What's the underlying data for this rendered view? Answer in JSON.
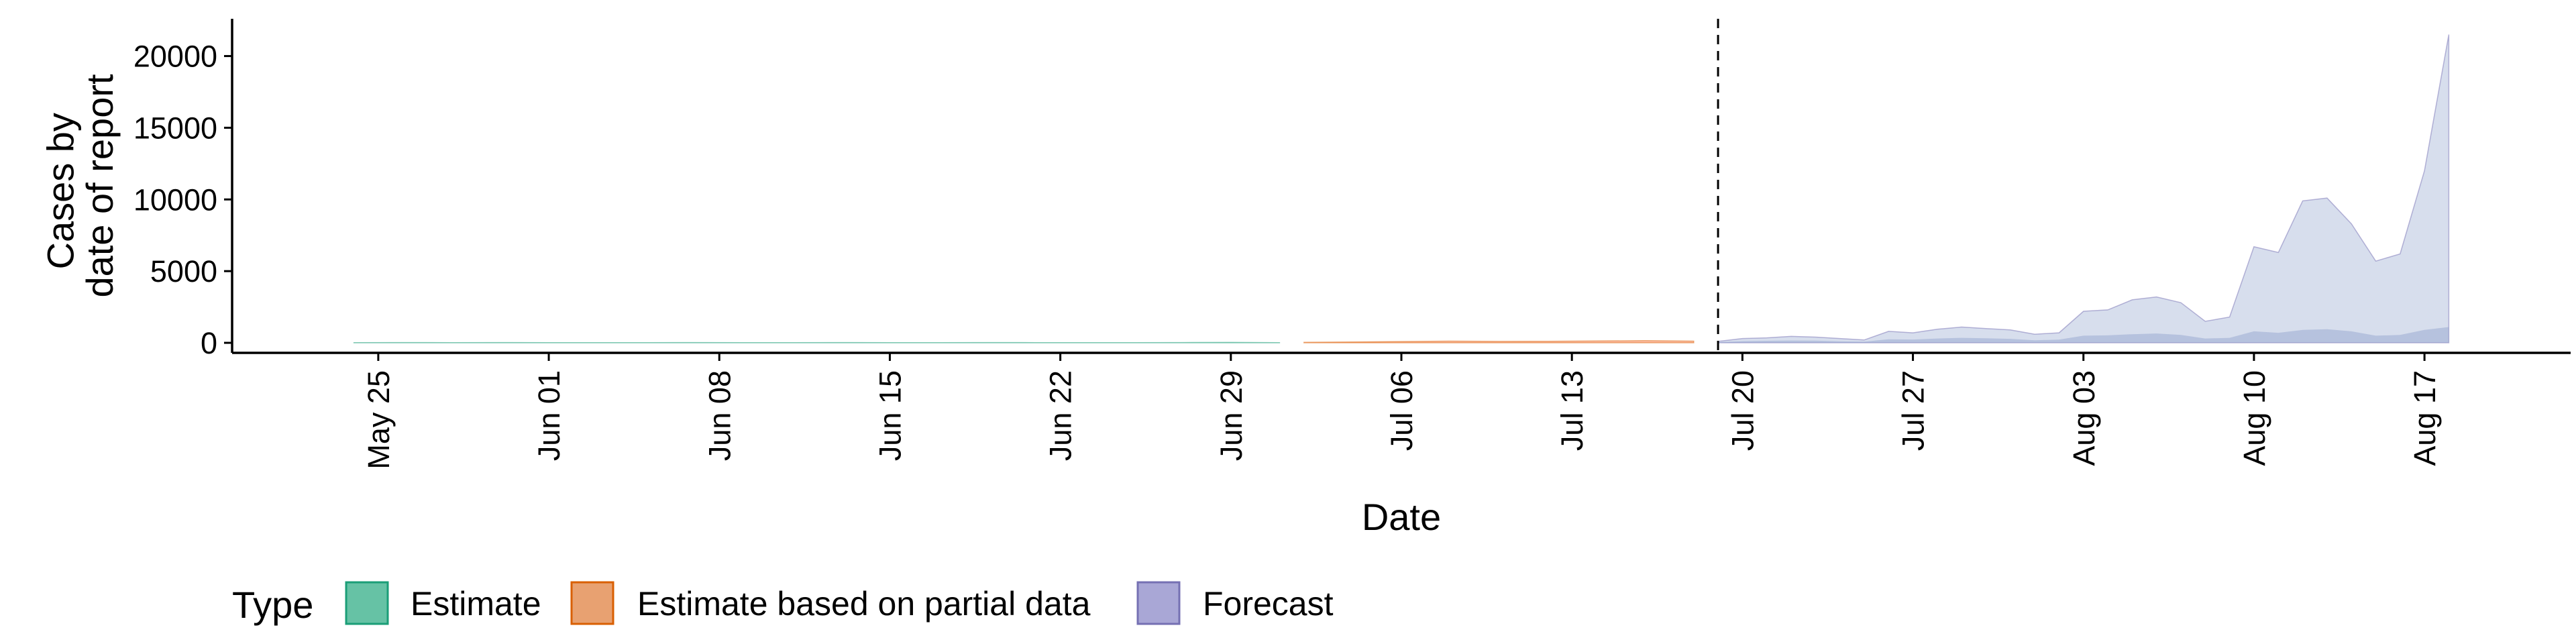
{
  "chart_data": {
    "type": "area",
    "ylabel": "Cases by\ndate of report",
    "xlabel": "Date",
    "yticks": [
      0,
      5000,
      10000,
      15000,
      20000
    ],
    "ylim": [
      -700,
      22600
    ],
    "xlim": [
      "2020-05-19",
      "2020-08-23"
    ],
    "xticks": [
      {
        "date": "2020-05-25",
        "label": "May 25"
      },
      {
        "date": "2020-06-01",
        "label": "Jun 01"
      },
      {
        "date": "2020-06-08",
        "label": "Jun 08"
      },
      {
        "date": "2020-06-15",
        "label": "Jun 15"
      },
      {
        "date": "2020-06-22",
        "label": "Jun 22"
      },
      {
        "date": "2020-06-29",
        "label": "Jun 29"
      },
      {
        "date": "2020-07-06",
        "label": "Jul 06"
      },
      {
        "date": "2020-07-13",
        "label": "Jul 13"
      },
      {
        "date": "2020-07-20",
        "label": "Jul 20"
      },
      {
        "date": "2020-07-27",
        "label": "Jul 27"
      },
      {
        "date": "2020-08-03",
        "label": "Aug 03"
      },
      {
        "date": "2020-08-10",
        "label": "Aug 10"
      },
      {
        "date": "2020-08-17",
        "label": "Aug 17"
      }
    ],
    "vline": "2020-07-19",
    "legend": {
      "title": "Type",
      "position": "bottom",
      "entries": [
        "Estimate",
        "Estimate based on partial data",
        "Forecast"
      ]
    },
    "series": [
      {
        "name": "Estimate",
        "fill": "#66C2A5",
        "stroke": "#1B9E77",
        "dates": [
          "2020-05-24",
          "2020-05-26",
          "2020-05-28",
          "2020-05-30",
          "2020-06-01",
          "2020-06-03",
          "2020-06-05",
          "2020-06-07",
          "2020-06-09",
          "2020-06-11",
          "2020-06-13",
          "2020-06-15",
          "2020-06-17",
          "2020-06-19",
          "2020-06-21",
          "2020-06-23",
          "2020-06-25",
          "2020-06-27",
          "2020-06-29",
          "2020-07-01"
        ],
        "upper": [
          10,
          20,
          15,
          20,
          15,
          10,
          15,
          20,
          15,
          15,
          20,
          15,
          15,
          20,
          15,
          10,
          15,
          20,
          30,
          15
        ],
        "lower": [
          0,
          0,
          0,
          0,
          0,
          0,
          0,
          0,
          0,
          0,
          0,
          0,
          0,
          0,
          0,
          0,
          0,
          0,
          0,
          0
        ]
      },
      {
        "name": "Estimate based on partial data",
        "fill": "#FC8D62",
        "stroke": "#D95F02",
        "dates": [
          "2020-07-02",
          "2020-07-04",
          "2020-07-06",
          "2020-07-08",
          "2020-07-10",
          "2020-07-12",
          "2020-07-14",
          "2020-07-16",
          "2020-07-18"
        ],
        "upper": [
          40,
          60,
          90,
          120,
          100,
          110,
          130,
          150,
          120
        ],
        "lower": [
          0,
          0,
          0,
          0,
          0,
          0,
          0,
          0,
          0
        ]
      },
      {
        "name": "Forecast",
        "fill": "#8DA0CB",
        "stroke": "#7570B3",
        "dates": [
          "2020-07-19",
          "2020-07-20",
          "2020-07-21",
          "2020-07-22",
          "2020-07-23",
          "2020-07-24",
          "2020-07-25",
          "2020-07-26",
          "2020-07-27",
          "2020-07-28",
          "2020-07-29",
          "2020-07-30",
          "2020-07-31",
          "2020-08-01",
          "2020-08-02",
          "2020-08-03",
          "2020-08-04",
          "2020-08-05",
          "2020-08-06",
          "2020-08-07",
          "2020-08-08",
          "2020-08-09",
          "2020-08-10",
          "2020-08-11",
          "2020-08-12",
          "2020-08-13",
          "2020-08-14",
          "2020-08-15",
          "2020-08-16",
          "2020-08-17",
          "2020-08-18"
        ],
        "upper": [
          100,
          300,
          350,
          450,
          400,
          300,
          200,
          800,
          700,
          950,
          1100,
          1000,
          900,
          600,
          700,
          2200,
          2300,
          3000,
          3200,
          2800,
          1500,
          1800,
          6700,
          6300,
          9900,
          10100,
          8300,
          5700,
          6200,
          12000,
          21500
        ],
        "lower": [
          0,
          0,
          0,
          0,
          0,
          0,
          0,
          0,
          0,
          0,
          0,
          0,
          0,
          0,
          0,
          0,
          0,
          0,
          0,
          0,
          0,
          0,
          0,
          0,
          0,
          0,
          0,
          0,
          0,
          0,
          0
        ],
        "inner_upper": [
          50,
          120,
          140,
          160,
          150,
          110,
          80,
          250,
          230,
          300,
          350,
          320,
          280,
          180,
          220,
          500,
          520,
          600,
          650,
          550,
          300,
          350,
          800,
          700,
          900,
          950,
          800,
          500,
          550,
          900,
          1100
        ],
        "inner_lower": [
          0,
          0,
          0,
          0,
          0,
          0,
          0,
          0,
          0,
          0,
          0,
          0,
          0,
          0,
          0,
          0,
          0,
          0,
          0,
          0,
          0,
          0,
          0,
          0,
          0,
          0,
          0,
          0,
          0,
          0,
          0
        ]
      }
    ]
  }
}
